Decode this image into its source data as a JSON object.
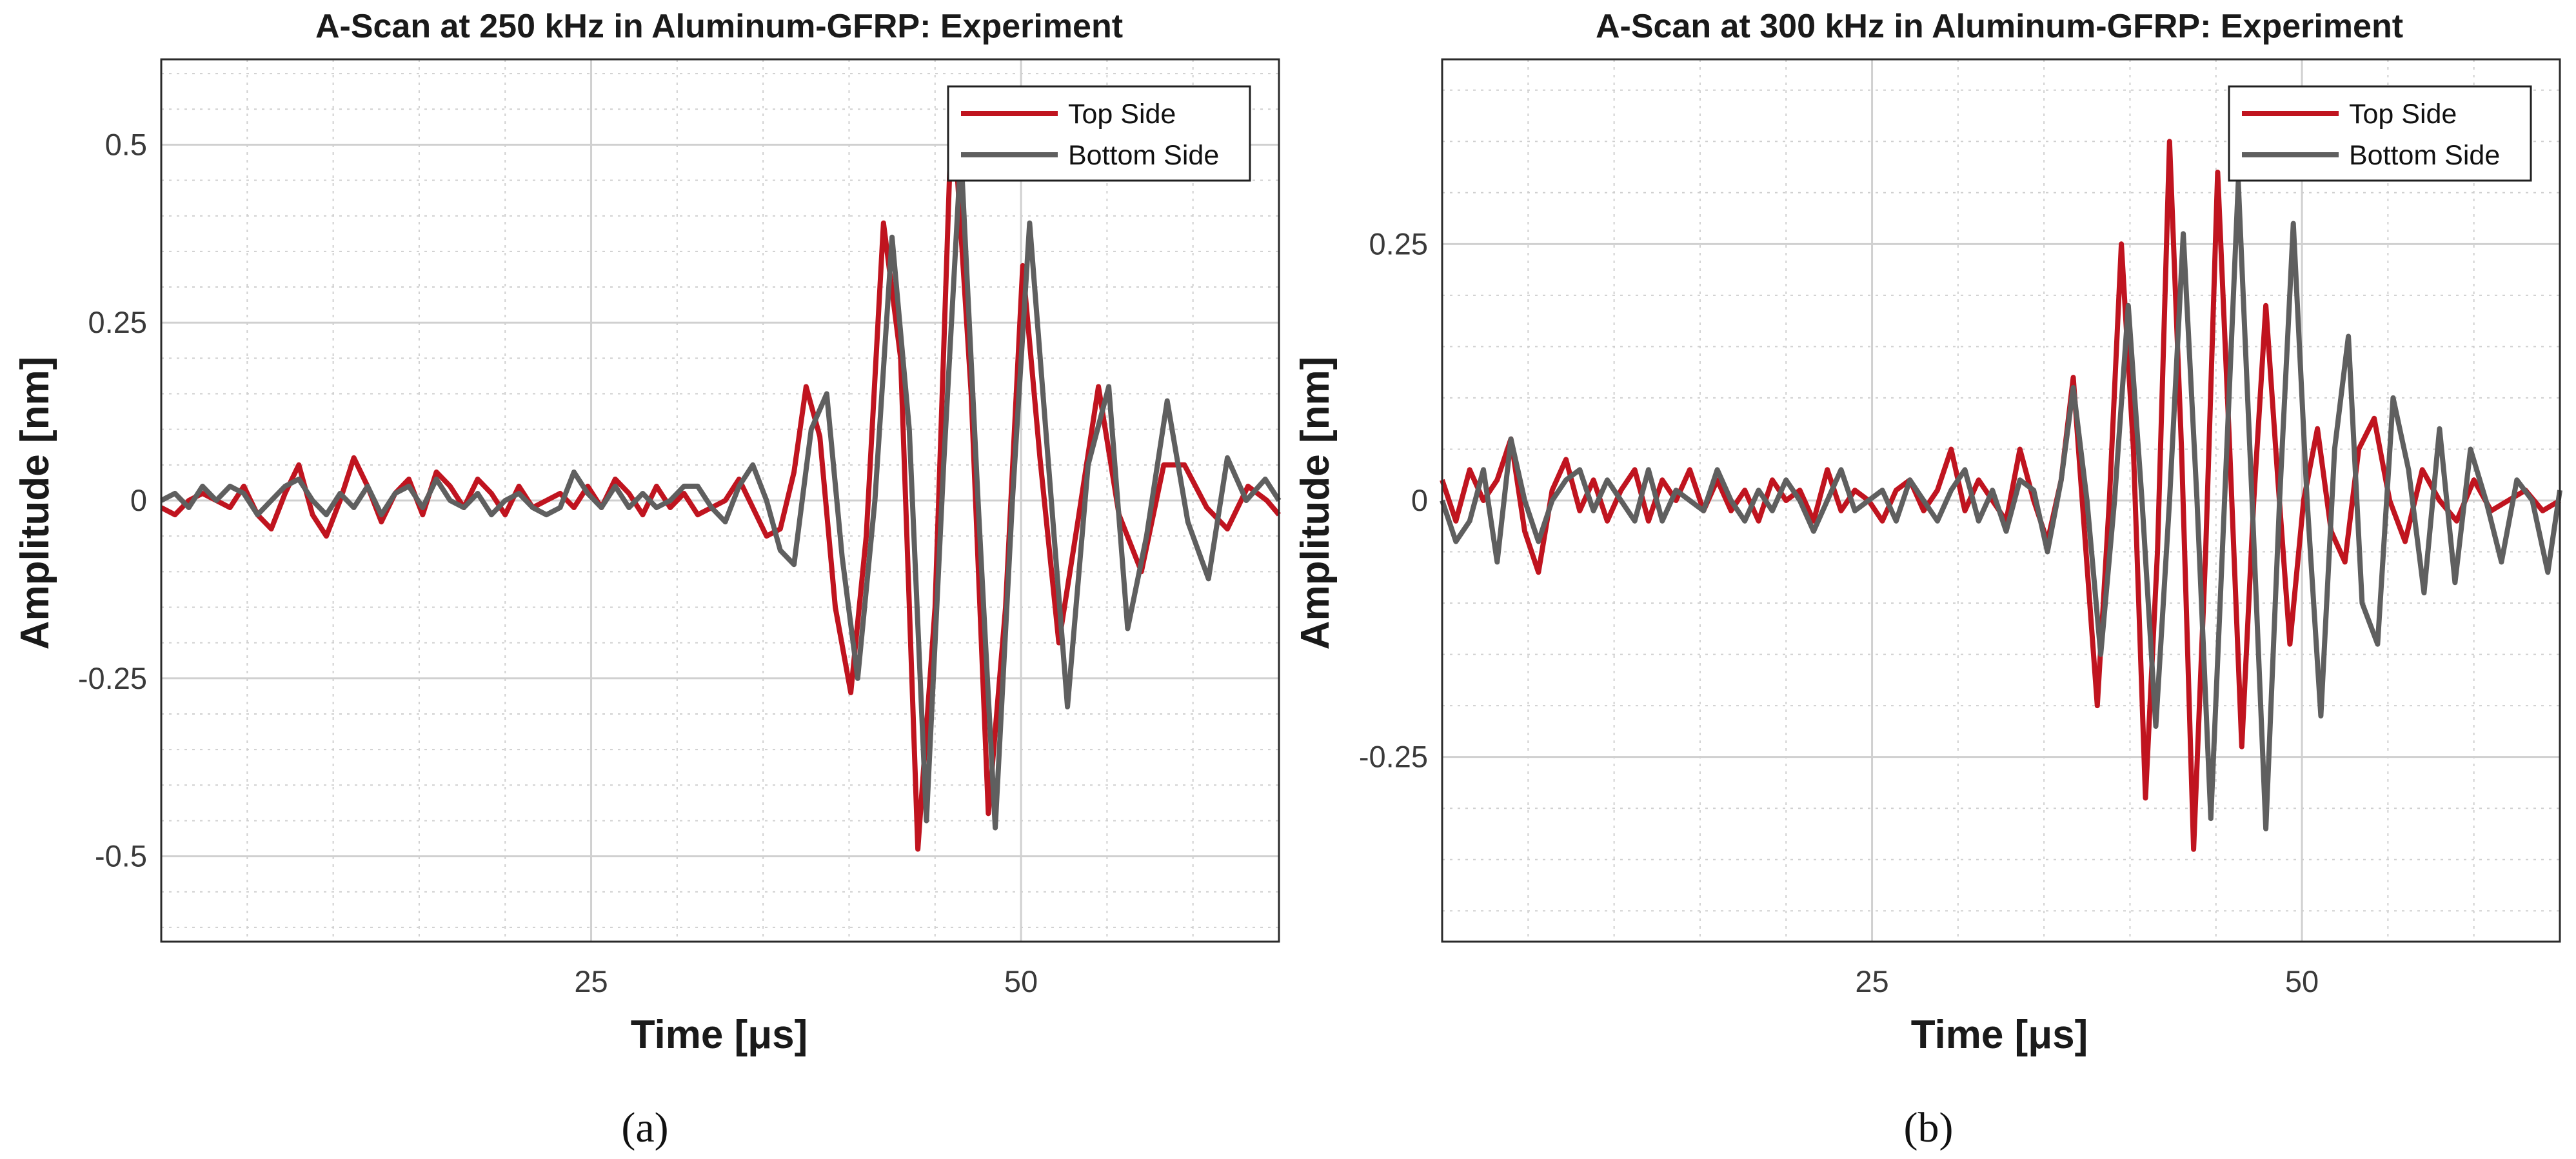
{
  "colors": {
    "top_side": "#c0141f",
    "bottom_side": "#5f5f5f",
    "grid": "#d9d9d9",
    "axes": "#2a2a2a"
  },
  "captions": [
    "(a)",
    "(b)"
  ],
  "chart_data": [
    {
      "type": "line",
      "title": "A-Scan at 250 kHz in Aluminum-GFRP:  Experiment",
      "xlabel": "Time [μs]",
      "ylabel": "Amplitude [nm]",
      "xlim": [
        0,
        65
      ],
      "ylim": [
        -0.62,
        0.62
      ],
      "xticks": [
        25,
        50
      ],
      "xtick_labels": [
        "25",
        "50"
      ],
      "yticks": [
        -0.5,
        -0.25,
        0,
        0.25,
        0.5
      ],
      "ytick_labels": [
        "-0.5",
        "-0.25",
        "0",
        "0.25",
        "0.5"
      ],
      "grid": true,
      "legend": "top-right",
      "series": [
        {
          "name": "Top Side",
          "color": "#c0141f",
          "x": [
            0,
            0.8,
            1.6,
            2.4,
            3.2,
            4,
            4.8,
            5.6,
            6.4,
            7.2,
            8,
            8.8,
            9.6,
            10.4,
            11.2,
            12,
            12.8,
            13.6,
            14.4,
            15.2,
            16,
            16.8,
            17.6,
            18.4,
            19.2,
            20,
            20.8,
            21.6,
            22.4,
            23.2,
            24,
            24.8,
            25.6,
            26.4,
            27.2,
            28,
            28.8,
            29.6,
            30.4,
            31.2,
            32,
            32.8,
            33.6,
            34.4,
            35.2,
            36,
            36.8,
            37.5,
            38.3,
            39.2,
            40.1,
            41.0,
            42.0,
            43.0,
            44.0,
            45.0,
            46.0,
            47.1,
            48.1,
            49.1,
            50.1,
            51.1,
            52.2,
            53.3,
            54.5,
            55.7,
            57.0,
            58.3,
            59.5,
            60.8,
            62.0,
            63.2,
            64.3,
            65.0
          ],
          "values": [
            -0.01,
            -0.02,
            0.0,
            0.01,
            0.0,
            -0.01,
            0.02,
            -0.02,
            -0.04,
            0.01,
            0.05,
            -0.02,
            -0.05,
            0.0,
            0.06,
            0.02,
            -0.03,
            0.01,
            0.03,
            -0.02,
            0.04,
            0.02,
            -0.01,
            0.03,
            0.01,
            -0.02,
            0.02,
            -0.01,
            0.0,
            0.01,
            -0.01,
            0.02,
            -0.01,
            0.03,
            0.01,
            -0.02,
            0.02,
            -0.01,
            0.01,
            -0.02,
            -0.01,
            0.0,
            0.03,
            -0.01,
            -0.05,
            -0.04,
            0.04,
            0.16,
            0.09,
            -0.15,
            -0.27,
            -0.05,
            0.39,
            0.2,
            -0.49,
            -0.15,
            0.57,
            0.15,
            -0.44,
            -0.15,
            0.33,
            0.06,
            -0.2,
            -0.03,
            0.16,
            -0.02,
            -0.1,
            0.05,
            0.05,
            -0.01,
            -0.04,
            0.02,
            0.0,
            -0.02
          ]
        },
        {
          "name": "Bottom Side",
          "color": "#5f5f5f",
          "x": [
            0,
            0.8,
            1.6,
            2.4,
            3.2,
            4,
            4.8,
            5.6,
            6.4,
            7.2,
            8,
            8.8,
            9.6,
            10.4,
            11.2,
            12,
            12.8,
            13.6,
            14.4,
            15.2,
            16,
            16.8,
            17.6,
            18.4,
            19.2,
            20,
            20.8,
            21.6,
            22.4,
            23.2,
            24,
            24.8,
            25.6,
            26.4,
            27.2,
            28,
            28.8,
            29.6,
            30.4,
            31.2,
            32,
            32.8,
            33.6,
            34.4,
            35.2,
            36,
            36.8,
            37.8,
            38.7,
            39.6,
            40.5,
            41.5,
            42.5,
            43.5,
            44.5,
            45.5,
            46.5,
            47.5,
            48.5,
            49.5,
            50.5,
            51.6,
            52.7,
            53.9,
            55.1,
            56.2,
            57.3,
            58.5,
            59.7,
            60.9,
            62.0,
            63.1,
            64.2,
            65.0
          ],
          "values": [
            0.0,
            0.01,
            -0.01,
            0.02,
            0.0,
            0.02,
            0.01,
            -0.02,
            0.0,
            0.02,
            0.03,
            0.0,
            -0.02,
            0.01,
            -0.01,
            0.02,
            -0.02,
            0.01,
            0.02,
            -0.01,
            0.03,
            0.0,
            -0.01,
            0.01,
            -0.02,
            0.0,
            0.01,
            -0.01,
            -0.02,
            -0.01,
            0.04,
            0.01,
            -0.01,
            0.02,
            -0.01,
            0.01,
            -0.01,
            0.0,
            0.02,
            0.02,
            -0.01,
            -0.03,
            0.02,
            0.05,
            0.0,
            -0.07,
            -0.09,
            0.1,
            0.15,
            -0.08,
            -0.25,
            0.0,
            0.37,
            0.1,
            -0.45,
            0.05,
            0.49,
            0.0,
            -0.46,
            0.0,
            0.39,
            0.05,
            -0.29,
            0.05,
            0.16,
            -0.18,
            -0.05,
            0.14,
            -0.03,
            -0.11,
            0.06,
            0.0,
            0.03,
            0.0
          ]
        }
      ]
    },
    {
      "type": "line",
      "title": "A-Scan at 300 kHz in Aluminum-GFRP:  Experiment",
      "xlabel": "Time [μs]",
      "ylabel": "Amplitude [nm]",
      "xlim": [
        0,
        65
      ],
      "ylim": [
        -0.43,
        0.43
      ],
      "xticks": [
        25,
        50
      ],
      "xtick_labels": [
        "25",
        "50"
      ],
      "yticks": [
        -0.25,
        0,
        0.25
      ],
      "ytick_labels": [
        "-0.25",
        "0",
        "0.25"
      ],
      "grid": true,
      "legend": "top-right",
      "series": [
        {
          "name": "Top Side",
          "color": "#c0141f",
          "x": [
            0,
            0.8,
            1.6,
            2.4,
            3.2,
            4,
            4.8,
            5.6,
            6.4,
            7.2,
            8,
            8.8,
            9.6,
            10.4,
            11.2,
            12,
            12.8,
            13.6,
            14.4,
            15.2,
            16,
            16.8,
            17.6,
            18.4,
            19.2,
            20,
            20.8,
            21.6,
            22.4,
            23.2,
            24,
            24.8,
            25.6,
            26.4,
            27.2,
            28,
            28.8,
            29.6,
            30.4,
            31.2,
            32,
            32.8,
            33.6,
            34.4,
            35.2,
            36.0,
            36.7,
            37.4,
            38.1,
            38.8,
            39.5,
            40.2,
            40.9,
            41.6,
            42.3,
            43.0,
            43.7,
            44.4,
            45.1,
            45.8,
            46.5,
            47.2,
            47.9,
            48.6,
            49.3,
            50.1,
            50.9,
            51.7,
            52.5,
            53.3,
            54.2,
            55.1,
            56.0,
            57.0,
            58.0,
            59.0,
            60.0,
            61.0,
            62.0,
            63.0,
            64.0,
            65.0
          ],
          "values": [
            0.02,
            -0.02,
            0.03,
            0.0,
            0.02,
            0.06,
            -0.03,
            -0.07,
            0.01,
            0.04,
            -0.01,
            0.02,
            -0.02,
            0.01,
            0.03,
            -0.02,
            0.02,
            0.0,
            0.03,
            -0.01,
            0.02,
            -0.01,
            0.01,
            -0.02,
            0.02,
            0.0,
            0.01,
            -0.02,
            0.03,
            -0.01,
            0.01,
            0.0,
            -0.02,
            0.01,
            0.02,
            -0.01,
            0.01,
            0.05,
            -0.01,
            0.02,
            0.0,
            -0.02,
            0.05,
            0.0,
            -0.04,
            0.02,
            0.12,
            -0.04,
            -0.2,
            0.0,
            0.25,
            0.05,
            -0.29,
            -0.05,
            0.35,
            0.05,
            -0.34,
            -0.05,
            0.32,
            0.05,
            -0.24,
            0.0,
            0.19,
            0.02,
            -0.14,
            0.0,
            0.07,
            -0.03,
            -0.06,
            0.05,
            0.08,
            0.0,
            -0.04,
            0.03,
            0.0,
            -0.02,
            0.02,
            -0.01,
            0.0,
            0.01,
            -0.01,
            0.0
          ]
        },
        {
          "name": "Bottom Side",
          "color": "#5f5f5f",
          "x": [
            0,
            0.8,
            1.6,
            2.4,
            3.2,
            4,
            4.8,
            5.6,
            6.4,
            7.2,
            8,
            8.8,
            9.6,
            10.4,
            11.2,
            12,
            12.8,
            13.6,
            14.4,
            15.2,
            16,
            16.8,
            17.6,
            18.4,
            19.2,
            20,
            20.8,
            21.6,
            22.4,
            23.2,
            24,
            24.8,
            25.6,
            26.4,
            27.2,
            28,
            28.8,
            29.6,
            30.4,
            31.2,
            32,
            32.8,
            33.6,
            34.4,
            35.2,
            36.0,
            36.7,
            37.5,
            38.3,
            39.1,
            39.9,
            40.7,
            41.5,
            42.3,
            43.1,
            43.9,
            44.7,
            45.5,
            46.3,
            47.1,
            47.9,
            48.7,
            49.5,
            50.3,
            51.1,
            51.9,
            52.7,
            53.5,
            54.4,
            55.3,
            56.2,
            57.1,
            58.0,
            58.9,
            59.8,
            60.7,
            61.6,
            62.5,
            63.4,
            64.3,
            65.0
          ],
          "values": [
            0.0,
            -0.04,
            -0.02,
            0.03,
            -0.06,
            0.06,
            0.0,
            -0.04,
            0.0,
            0.02,
            0.03,
            -0.01,
            0.02,
            0.0,
            -0.02,
            0.03,
            -0.02,
            0.01,
            0.0,
            -0.01,
            0.03,
            0.0,
            -0.02,
            0.01,
            -0.01,
            0.02,
            0.0,
            -0.03,
            0.0,
            0.03,
            -0.01,
            0.0,
            0.01,
            -0.02,
            0.02,
            0.0,
            -0.02,
            0.01,
            0.03,
            -0.02,
            0.01,
            -0.03,
            0.02,
            0.01,
            -0.05,
            0.02,
            0.11,
            0.0,
            -0.15,
            0.0,
            0.19,
            0.0,
            -0.22,
            0.0,
            0.26,
            0.0,
            -0.31,
            0.0,
            0.31,
            0.0,
            -0.32,
            0.0,
            0.27,
            0.0,
            -0.21,
            0.05,
            0.16,
            -0.1,
            -0.14,
            0.1,
            0.03,
            -0.09,
            0.07,
            -0.08,
            0.05,
            0.0,
            -0.06,
            0.02,
            0.0,
            -0.07,
            0.01
          ]
        }
      ]
    }
  ]
}
